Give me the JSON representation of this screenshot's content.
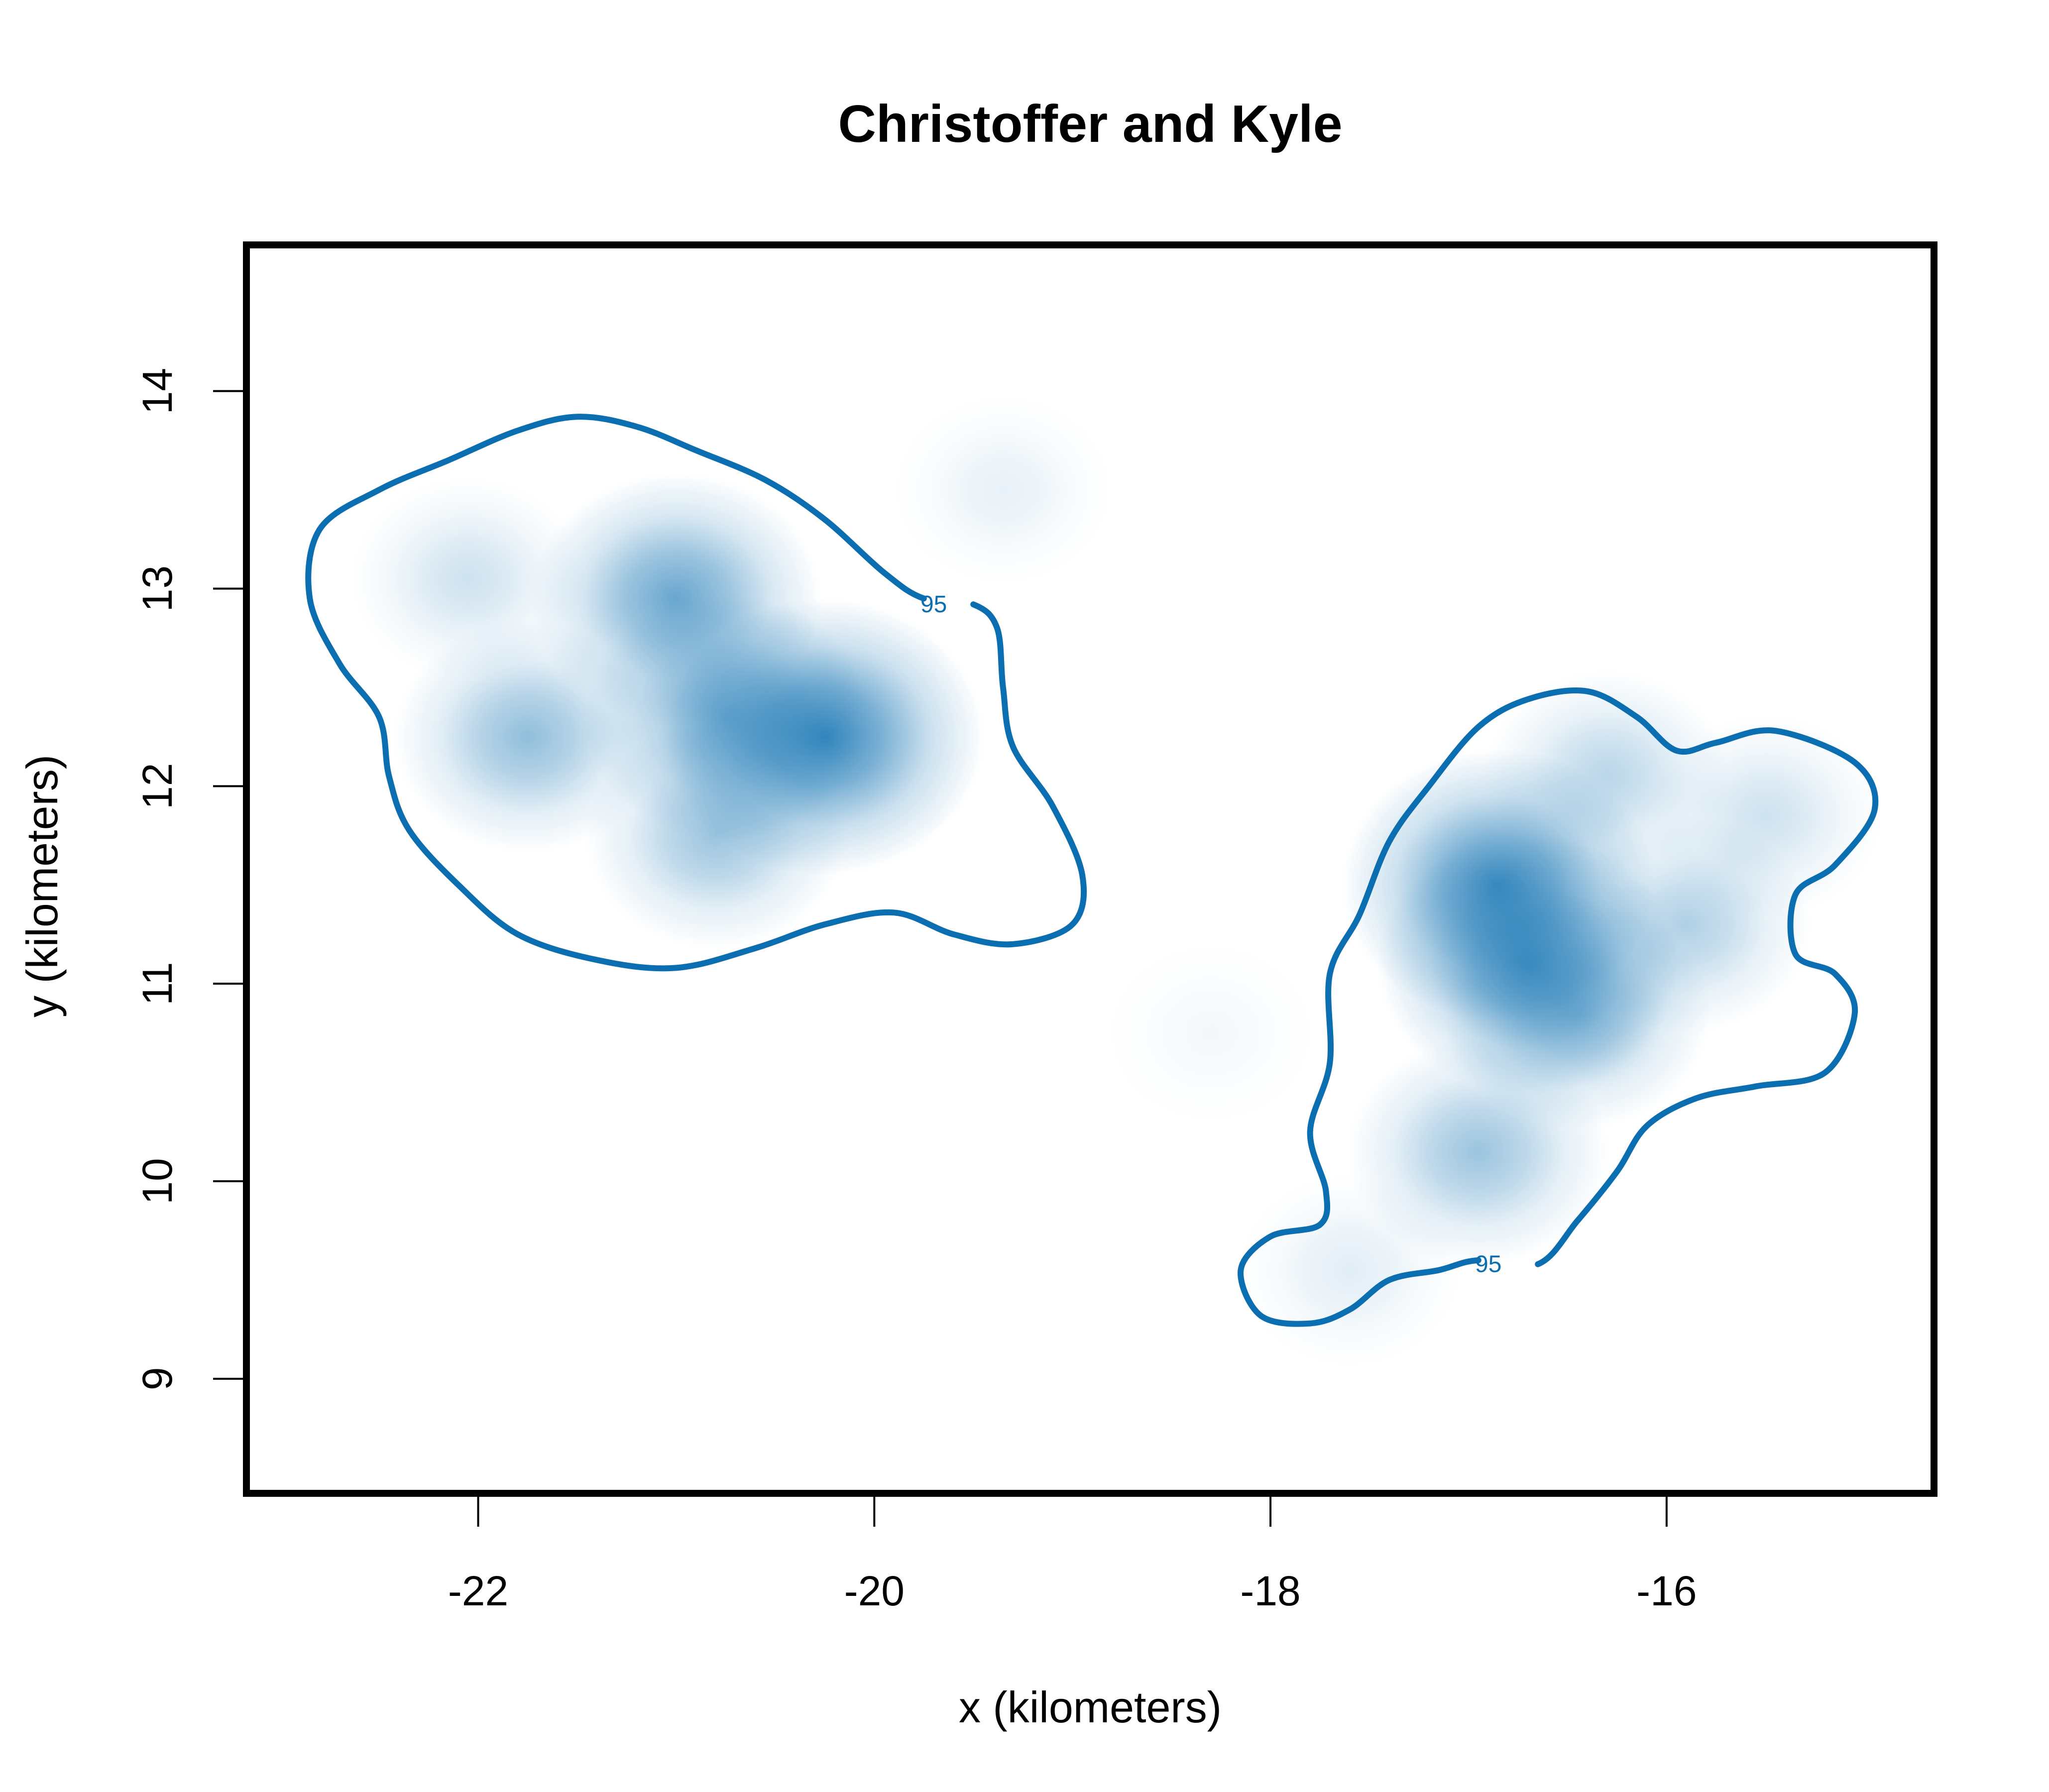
{
  "chart_data": {
    "type": "heatmap",
    "title": "Christoffer and Kyle",
    "xlabel": "x (kilometers)",
    "ylabel": "y (kilometers)",
    "xlim": [
      -23.17,
      -14.65
    ],
    "ylim": [
      8.42,
      14.74
    ],
    "x_ticks": [
      -22,
      -20,
      -18,
      -16
    ],
    "y_ticks": [
      9,
      10,
      11,
      12,
      13,
      14
    ],
    "x_tick_labels": [
      "-22",
      "-20",
      "-18",
      "-16"
    ],
    "y_tick_labels": [
      "9",
      "10",
      "11",
      "12",
      "13",
      "14"
    ],
    "grid": false,
    "colors": {
      "density": "#0a6eb0",
      "contour": "#0a6eb0",
      "frame": "#000000"
    },
    "density_peaks": [
      {
        "x": -20.25,
        "y": 12.25,
        "intensity": 1.0
      },
      {
        "x": -20.75,
        "y": 12.35,
        "intensity": 0.7
      },
      {
        "x": -21.0,
        "y": 12.95,
        "intensity": 0.75
      },
      {
        "x": -21.75,
        "y": 12.25,
        "intensity": 0.55
      },
      {
        "x": -20.8,
        "y": 11.75,
        "intensity": 0.5
      },
      {
        "x": -22.05,
        "y": 13.05,
        "intensity": 0.25
      },
      {
        "x": -19.35,
        "y": 13.5,
        "intensity": 0.12
      },
      {
        "x": -16.85,
        "y": 11.5,
        "intensity": 0.95
      },
      {
        "x": -16.7,
        "y": 11.1,
        "intensity": 0.85
      },
      {
        "x": -16.45,
        "y": 10.85,
        "intensity": 0.55
      },
      {
        "x": -16.3,
        "y": 12.05,
        "intensity": 0.35
      },
      {
        "x": -15.9,
        "y": 11.3,
        "intensity": 0.4
      },
      {
        "x": -15.5,
        "y": 11.85,
        "intensity": 0.25
      },
      {
        "x": -16.95,
        "y": 10.15,
        "intensity": 0.5
      },
      {
        "x": -17.6,
        "y": 9.55,
        "intensity": 0.15
      },
      {
        "x": -18.3,
        "y": 10.75,
        "intensity": 0.06
      }
    ],
    "contours": [
      {
        "level_label": "95",
        "label_position": {
          "x": -19.7,
          "y": 12.92
        },
        "path": [
          [
            -19.5,
            12.92
          ],
          [
            -19.38,
            12.8
          ],
          [
            -19.35,
            12.5
          ],
          [
            -19.3,
            12.2
          ],
          [
            -19.1,
            11.9
          ],
          [
            -18.95,
            11.55
          ],
          [
            -19.0,
            11.3
          ],
          [
            -19.3,
            11.2
          ],
          [
            -19.6,
            11.25
          ],
          [
            -19.9,
            11.36
          ],
          [
            -20.25,
            11.3
          ],
          [
            -20.6,
            11.18
          ],
          [
            -21.0,
            11.08
          ],
          [
            -21.4,
            11.12
          ],
          [
            -21.8,
            11.25
          ],
          [
            -22.1,
            11.5
          ],
          [
            -22.35,
            11.78
          ],
          [
            -22.45,
            12.05
          ],
          [
            -22.5,
            12.35
          ],
          [
            -22.7,
            12.62
          ],
          [
            -22.85,
            12.95
          ],
          [
            -22.8,
            13.3
          ],
          [
            -22.5,
            13.5
          ],
          [
            -22.15,
            13.65
          ],
          [
            -21.8,
            13.8
          ],
          [
            -21.5,
            13.87
          ],
          [
            -21.2,
            13.82
          ],
          [
            -20.9,
            13.7
          ],
          [
            -20.55,
            13.55
          ],
          [
            -20.25,
            13.35
          ],
          [
            -19.95,
            13.08
          ],
          [
            -19.75,
            12.95
          ]
        ]
      },
      {
        "level_label": "95",
        "label_position": {
          "x": -16.9,
          "y": 9.58
        },
        "path": [
          [
            -16.65,
            9.58
          ],
          [
            -16.45,
            9.8
          ],
          [
            -16.25,
            10.05
          ],
          [
            -16.1,
            10.28
          ],
          [
            -15.85,
            10.42
          ],
          [
            -15.55,
            10.48
          ],
          [
            -15.2,
            10.55
          ],
          [
            -15.05,
            10.85
          ],
          [
            -15.15,
            11.05
          ],
          [
            -15.35,
            11.15
          ],
          [
            -15.35,
            11.45
          ],
          [
            -15.15,
            11.6
          ],
          [
            -14.95,
            11.88
          ],
          [
            -15.05,
            12.12
          ],
          [
            -15.45,
            12.28
          ],
          [
            -15.75,
            12.22
          ],
          [
            -15.95,
            12.18
          ],
          [
            -16.15,
            12.35
          ],
          [
            -16.4,
            12.48
          ],
          [
            -16.7,
            12.44
          ],
          [
            -16.95,
            12.3
          ],
          [
            -17.2,
            12.0
          ],
          [
            -17.4,
            11.72
          ],
          [
            -17.55,
            11.35
          ],
          [
            -17.7,
            11.05
          ],
          [
            -17.7,
            10.6
          ],
          [
            -17.8,
            10.25
          ],
          [
            -17.72,
            9.95
          ],
          [
            -17.75,
            9.78
          ],
          [
            -18.0,
            9.72
          ],
          [
            -18.15,
            9.55
          ],
          [
            -18.05,
            9.32
          ],
          [
            -17.8,
            9.28
          ],
          [
            -17.6,
            9.35
          ],
          [
            -17.4,
            9.5
          ],
          [
            -17.15,
            9.55
          ],
          [
            -16.95,
            9.6
          ]
        ]
      }
    ]
  }
}
